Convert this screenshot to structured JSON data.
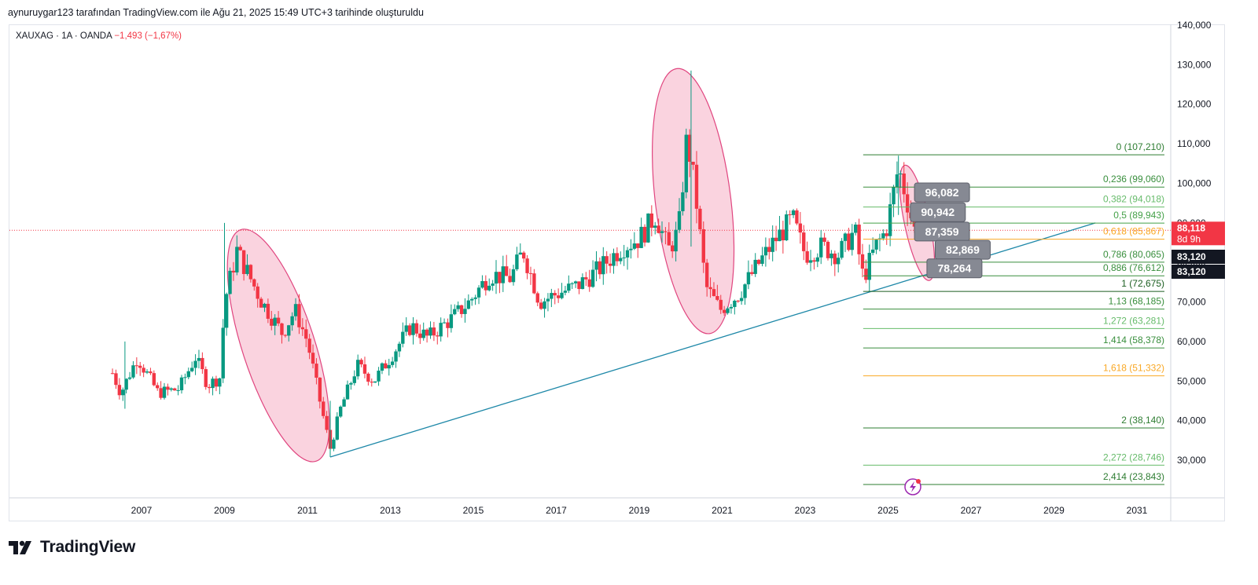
{
  "header": {
    "caption": "aynuruygar123 tarafından TradingView.com ile Ağu 21, 2025 15:49 UTC+3 tarihinde oluşturuldu"
  },
  "symbol": {
    "name": "XAUXAG",
    "interval": "1A",
    "exchange": "OANDA",
    "change": "−1,493 (−1,67%)",
    "sep": "·"
  },
  "brand": {
    "name": "TradingView"
  },
  "chart_data": {
    "type": "candlestick",
    "interval": "monthly",
    "xlim": [
      2005.5,
      2032.6
    ],
    "ylim": [
      20000,
      142000
    ],
    "x_ticks": [
      "2007",
      "2009",
      "2011",
      "2013",
      "2015",
      "2017",
      "2019",
      "2021",
      "2023",
      "2025",
      "2027",
      "2029",
      "2031"
    ],
    "y_ticks": [
      "30,000",
      "40,000",
      "50,000",
      "60,000",
      "70,000",
      "80,000",
      "90,000",
      "100,000",
      "110,000",
      "120,000",
      "130,000",
      "140,000"
    ],
    "y_tick_values": [
      30000,
      40000,
      50000,
      60000,
      70000,
      80000,
      90000,
      100000,
      110000,
      120000,
      130000,
      140000
    ],
    "price_path": [
      [
        2006.3,
        52000
      ],
      [
        2006.5,
        47000
      ],
      [
        2006.9,
        56000
      ],
      [
        2007.4,
        47000
      ],
      [
        2007.9,
        48000
      ],
      [
        2008.3,
        56000
      ],
      [
        2008.6,
        49000
      ],
      [
        2008.9,
        51000
      ],
      [
        2009.0,
        70000
      ],
      [
        2009.3,
        83000
      ],
      [
        2009.9,
        70000
      ],
      [
        2010.4,
        62000
      ],
      [
        2010.7,
        68000
      ],
      [
        2011.0,
        60000
      ],
      [
        2011.3,
        45000
      ],
      [
        2011.55,
        33000
      ],
      [
        2011.8,
        43000
      ],
      [
        2012.2,
        54000
      ],
      [
        2012.6,
        50000
      ],
      [
        2013.0,
        56000
      ],
      [
        2013.5,
        64000
      ],
      [
        2013.9,
        61000
      ],
      [
        2014.5,
        66000
      ],
      [
        2014.9,
        70000
      ],
      [
        2015.4,
        77000
      ],
      [
        2015.9,
        76000
      ],
      [
        2016.2,
        83000
      ],
      [
        2016.6,
        70000
      ],
      [
        2017.0,
        72000
      ],
      [
        2017.5,
        74000
      ],
      [
        2018.0,
        78000
      ],
      [
        2018.6,
        84000
      ],
      [
        2019.0,
        86000
      ],
      [
        2019.4,
        92000
      ],
      [
        2019.7,
        83000
      ],
      [
        2019.95,
        88000
      ],
      [
        2020.15,
        112000
      ],
      [
        2020.35,
        98000
      ],
      [
        2020.6,
        74000
      ],
      [
        2020.95,
        68000
      ],
      [
        2021.4,
        72000
      ],
      [
        2021.9,
        80000
      ],
      [
        2022.3,
        86000
      ],
      [
        2022.7,
        91000
      ],
      [
        2023.0,
        82000
      ],
      [
        2023.4,
        84000
      ],
      [
        2023.8,
        82000
      ],
      [
        2024.2,
        88000
      ],
      [
        2024.4,
        76000
      ],
      [
        2024.7,
        84000
      ],
      [
        2024.95,
        88000
      ],
      [
        2025.25,
        104000
      ],
      [
        2025.45,
        96000
      ],
      [
        2025.64,
        88000
      ]
    ],
    "last_price": "88,118",
    "countdown": "8d 9h",
    "other_price_labels": [
      "83,120",
      "83,120"
    ],
    "fib_levels": [
      {
        "label": "0 (107,210)",
        "value": 107210,
        "color": "#2e7d32"
      },
      {
        "label": "0,236 (99,060)",
        "value": 99060,
        "color": "#388e3c"
      },
      {
        "label": "0,382 (94,018)",
        "value": 94018,
        "color": "#66bb6a"
      },
      {
        "label": "0,5 (89,943)",
        "value": 89943,
        "color": "#43a047"
      },
      {
        "label": "0,618 (85,867)",
        "value": 85867,
        "color": "#f9a825"
      },
      {
        "label": "0,786 (80,065)",
        "value": 80065,
        "color": "#388e3c"
      },
      {
        "label": "0,886 (76,612)",
        "value": 76612,
        "color": "#388e3c"
      },
      {
        "label": "1 (72,675)",
        "value": 72675,
        "color": "#1b5e20"
      },
      {
        "label": "1,13 (68,185)",
        "value": 68185,
        "color": "#388e3c"
      },
      {
        "label": "1,272 (63,281)",
        "value": 63281,
        "color": "#66bb6a"
      },
      {
        "label": "1,414 (58,378)",
        "value": 58378,
        "color": "#388e3c"
      },
      {
        "label": "1,618 (51,332)",
        "value": 51332,
        "color": "#f9a825"
      },
      {
        "label": "2 (38,140)",
        "value": 38140,
        "color": "#2e7d32"
      },
      {
        "label": "2,272 (28,746)",
        "value": 28746,
        "color": "#66bb6a"
      },
      {
        "label": "2,414 (23,843)",
        "value": 23843,
        "color": "#2e7d32"
      }
    ],
    "fib_x_start": 2024.4,
    "trendline": {
      "from": [
        2011.55,
        30800
      ],
      "to": [
        2030.0,
        90000
      ],
      "color": "#1e88a8"
    },
    "ellipses": [
      {
        "cx": 2010.3,
        "cy": 59000,
        "rx": 46,
        "ry": 155,
        "rotate": -18
      },
      {
        "cx": 2020.3,
        "cy": 95500,
        "rx": 48,
        "ry": 170,
        "rotate": -7
      },
      {
        "cx": 2025.7,
        "cy": 90000,
        "rx": 16,
        "ry": 75,
        "rotate": -12
      }
    ],
    "projection_labels": [
      {
        "text": "96,082",
        "x": 2026.3,
        "y": 97700
      },
      {
        "text": "90,942",
        "x": 2026.2,
        "y": 92700
      },
      {
        "text": "87,359",
        "x": 2026.3,
        "y": 87800
      },
      {
        "text": "82,869",
        "x": 2026.8,
        "y": 83200
      },
      {
        "text": "78,264",
        "x": 2026.6,
        "y": 78500
      }
    ],
    "colors": {
      "up": "#089981",
      "down": "#f23645",
      "pink": "#f8c4d4",
      "pink_stroke": "#e0457f",
      "last_price_bg": "#f23645",
      "price_label_bg": "#131722"
    }
  }
}
